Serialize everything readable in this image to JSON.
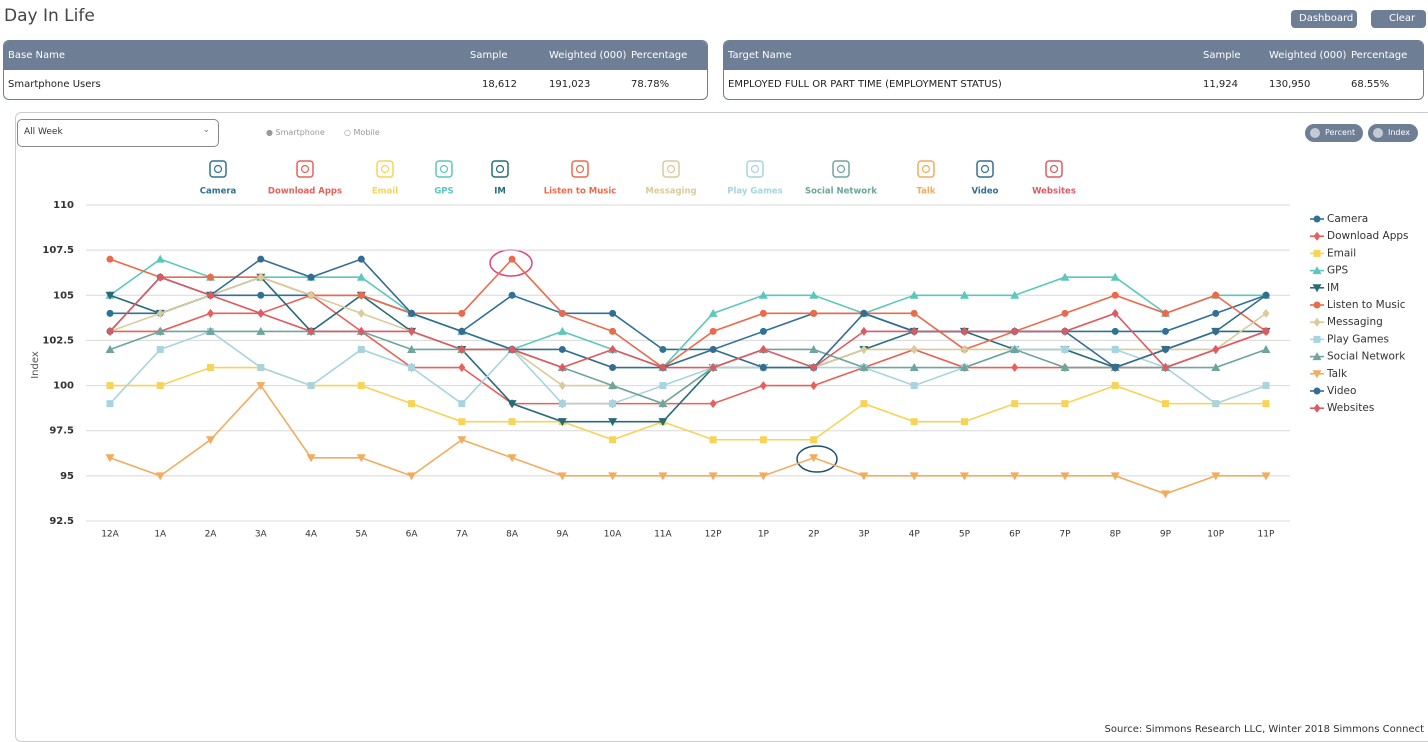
{
  "header": {
    "title": "Day In Life",
    "buttons": [
      "Dashboard",
      "Clear All"
    ]
  },
  "base_table": {
    "columns": [
      "Base Name",
      "Sample",
      "Weighted (000)",
      "Percentage"
    ],
    "row": [
      "Smartphone Users",
      "18,612",
      "191,023",
      "78.78%"
    ]
  },
  "target_table": {
    "columns": [
      "Target Name",
      "Sample",
      "Weighted (000)",
      "Percentage"
    ],
    "row": [
      "EMPLOYED FULL OR PART TIME (EMPLOYMENT STATUS)",
      "11,924",
      "130,950",
      "68.55%"
    ]
  },
  "controls": {
    "dropdown": "All Week",
    "radios": [
      "Smartphone",
      "Mobile"
    ],
    "toggles": [
      "Percent",
      "Index"
    ]
  },
  "source": "Source: Simmons Research LLC, Winter 2018 Simmons Connect",
  "chart_data": {
    "type": "line",
    "y_label": "Index",
    "categories": [
      "12A",
      "1A",
      "2A",
      "3A",
      "4A",
      "5A",
      "6A",
      "7A",
      "8A",
      "9A",
      "10A",
      "11A",
      "12P",
      "1P",
      "2P",
      "3P",
      "4P",
      "5P",
      "6P",
      "7P",
      "8P",
      "9P",
      "10P",
      "11P"
    ],
    "ylim": [
      92.5,
      110
    ],
    "yticks": [
      92.5,
      95,
      97.5,
      100,
      102.5,
      105,
      107.5,
      110
    ],
    "grid": true,
    "legend": "right",
    "series": [
      {
        "name": "Camera",
        "color": "#2f7296",
        "marker": "circle",
        "values": [
          104,
          104,
          105,
          105,
          105,
          105,
          104,
          103,
          105,
          104,
          104,
          102,
          102,
          103,
          104,
          104,
          103,
          103,
          103,
          103,
          103,
          103,
          104,
          105
        ]
      },
      {
        "name": "Download Apps",
        "color": "#e8605a",
        "marker": "diamond",
        "values": [
          103,
          103,
          104,
          104,
          105,
          103,
          101,
          101,
          99,
          99,
          99,
          99,
          99,
          100,
          100,
          101,
          102,
          101,
          101,
          101,
          101,
          101,
          102,
          103
        ]
      },
      {
        "name": "Email",
        "color": "#f7d358",
        "marker": "square",
        "values": [
          100,
          100,
          101,
          101,
          100,
          100,
          99,
          98,
          98,
          98,
          97,
          98,
          97,
          97,
          97,
          99,
          98,
          98,
          99,
          99,
          100,
          99,
          99,
          99
        ]
      },
      {
        "name": "GPS",
        "color": "#5cc8bb",
        "marker": "triangle",
        "values": [
          105,
          107,
          106,
          106,
          106,
          106,
          104,
          103,
          102,
          103,
          102,
          101,
          104,
          105,
          105,
          104,
          105,
          105,
          105,
          106,
          106,
          104,
          105,
          105
        ]
      },
      {
        "name": "IM",
        "color": "#276b78",
        "marker": "triangle-down",
        "values": [
          105,
          104,
          105,
          106,
          103,
          105,
          103,
          102,
          99,
          98,
          98,
          98,
          101,
          101,
          101,
          102,
          103,
          103,
          102,
          102,
          101,
          102,
          103,
          103
        ]
      },
      {
        "name": "Listen to Music",
        "color": "#ec6a4c",
        "marker": "circle",
        "values": [
          107,
          106,
          106,
          106,
          105,
          105,
          104,
          104,
          107,
          104,
          103,
          101,
          103,
          104,
          104,
          104,
          104,
          102,
          103,
          104,
          105,
          104,
          105,
          103
        ]
      },
      {
        "name": "Messaging",
        "color": "#d9cb9b",
        "marker": "diamond",
        "values": [
          103,
          104,
          105,
          106,
          105,
          104,
          103,
          102,
          102,
          100,
          100,
          99,
          101,
          101,
          101,
          102,
          102,
          102,
          102,
          102,
          102,
          102,
          102,
          104
        ]
      },
      {
        "name": "Play Games",
        "color": "#a9d4df",
        "marker": "square",
        "values": [
          99,
          102,
          103,
          101,
          100,
          102,
          101,
          99,
          102,
          99,
          99,
          100,
          101,
          101,
          101,
          101,
          100,
          101,
          102,
          102,
          102,
          101,
          99,
          100
        ]
      },
      {
        "name": "Social Network",
        "color": "#6ea59c",
        "marker": "triangle",
        "values": [
          102,
          103,
          103,
          103,
          103,
          103,
          102,
          102,
          102,
          101,
          100,
          99,
          101,
          102,
          102,
          101,
          101,
          101,
          102,
          101,
          101,
          101,
          101,
          102
        ]
      },
      {
        "name": "Talk",
        "color": "#f2ac5e",
        "marker": "triangle-down",
        "values": [
          96,
          95,
          97,
          100,
          96,
          96,
          95,
          97,
          96,
          95,
          95,
          95,
          95,
          95,
          96,
          95,
          95,
          95,
          95,
          95,
          95,
          94,
          95,
          95
        ]
      },
      {
        "name": "Video",
        "color": "#356d90",
        "marker": "circle",
        "values": [
          103,
          106,
          105,
          107,
          106,
          107,
          104,
          103,
          102,
          102,
          101,
          101,
          102,
          101,
          101,
          104,
          103,
          103,
          103,
          103,
          101,
          102,
          103,
          105
        ]
      },
      {
        "name": "Websites",
        "color": "#dd5a63",
        "marker": "diamond",
        "values": [
          103,
          106,
          105,
          104,
          103,
          103,
          103,
          102,
          102,
          101,
          102,
          101,
          101,
          102,
          101,
          103,
          103,
          103,
          103,
          103,
          104,
          101,
          102,
          103
        ]
      }
    ]
  }
}
